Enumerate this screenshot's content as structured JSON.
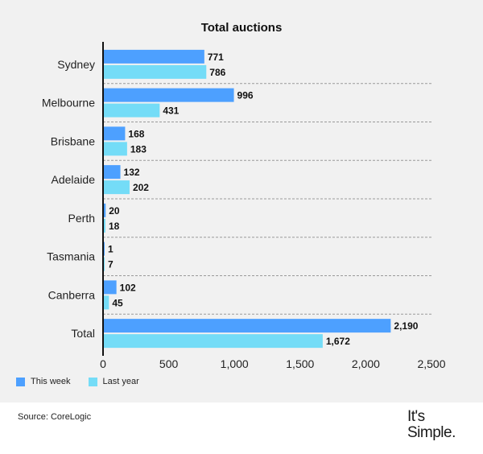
{
  "chart_data": {
    "type": "bar",
    "orientation": "horizontal",
    "title": "Total auctions",
    "categories": [
      "Sydney",
      "Melbourne",
      "Brisbane",
      "Adelaide",
      "Perth",
      "Tasmania",
      "Canberra",
      "Total"
    ],
    "series": [
      {
        "name": "This week",
        "values": [
          771,
          996,
          168,
          132,
          20,
          1,
          102,
          2190
        ],
        "labels": [
          "771",
          "996",
          "168",
          "132",
          "20",
          "1",
          "102",
          "2,190"
        ]
      },
      {
        "name": "Last year",
        "values": [
          786,
          431,
          183,
          202,
          18,
          7,
          45,
          1672
        ],
        "labels": [
          "786",
          "431",
          "183",
          "202",
          "18",
          "7",
          "45",
          "1,672"
        ]
      }
    ],
    "xlim": [
      0,
      2500
    ],
    "xticks": [
      0,
      500,
      1000,
      1500,
      2000,
      2500
    ],
    "xtick_labels": [
      "0",
      "500",
      "1,000",
      "1,500",
      "2,000",
      "2,500"
    ],
    "legend_position": "bottom-left",
    "grid": "dashed separators between categories"
  },
  "colors": {
    "this_week": "#4da0ff",
    "last_year": "#74dcf7",
    "panel_bg": "#f1f1f1",
    "axis": "#111111"
  },
  "source": "Source: CoreLogic",
  "logo": {
    "line1": "It's",
    "line2": "Simple."
  }
}
